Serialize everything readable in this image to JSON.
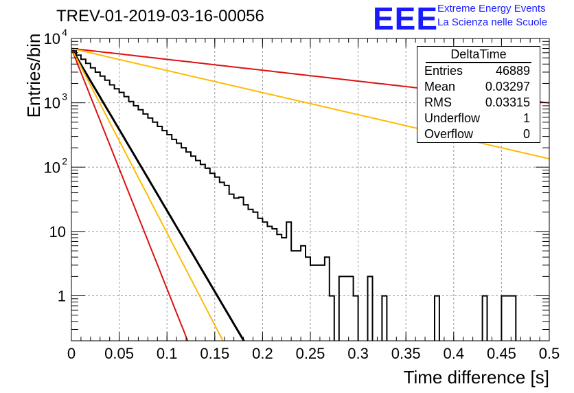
{
  "title": "TREV-01-2019-03-16-00056",
  "logo": {
    "text": "EEE",
    "line1": "Extreme Energy Events",
    "line2": "La Scienza nelle Scuole",
    "color": "#1a1aff"
  },
  "stats_box": {
    "title": "DeltaTime",
    "rows": [
      {
        "label": "Entries",
        "value": "46889"
      },
      {
        "label": "Mean",
        "value": "0.03297"
      },
      {
        "label": "RMS",
        "value": "0.03315"
      },
      {
        "label": "Underflow",
        "value": "1"
      },
      {
        "label": "Overflow",
        "value": "0"
      }
    ]
  },
  "chart_data": {
    "type": "line",
    "xlabel": "Time difference [s]",
    "ylabel": "Entries/bin",
    "xlim": [
      0,
      0.5
    ],
    "ylim": [
      0.2,
      10000
    ],
    "yscale": "log",
    "grid": true,
    "x_ticks": [
      "0",
      "0.05",
      "0.1",
      "0.15",
      "0.2",
      "0.25",
      "0.3",
      "0.35",
      "0.4",
      "0.45",
      "0.5"
    ],
    "y_ticks": [
      {
        "value": 1,
        "label": "1"
      },
      {
        "value": 10,
        "label": "10"
      },
      {
        "value": 100,
        "label": "10",
        "exp": "2"
      },
      {
        "value": 1000,
        "label": "10",
        "exp": "3"
      },
      {
        "value": 10000,
        "label": "10",
        "exp": "4"
      }
    ],
    "histogram": {
      "name": "DeltaTime",
      "color": "#000000",
      "bin_width": 0.005,
      "bin_starts": [
        0.0,
        0.005,
        0.01,
        0.015,
        0.02,
        0.025,
        0.03,
        0.035,
        0.04,
        0.045,
        0.05,
        0.055,
        0.06,
        0.065,
        0.07,
        0.075,
        0.08,
        0.085,
        0.09,
        0.095,
        0.1,
        0.105,
        0.11,
        0.115,
        0.12,
        0.125,
        0.13,
        0.135,
        0.14,
        0.145,
        0.15,
        0.155,
        0.16,
        0.165,
        0.17,
        0.175,
        0.18,
        0.185,
        0.19,
        0.195,
        0.2,
        0.205,
        0.21,
        0.215,
        0.22,
        0.225,
        0.23,
        0.235,
        0.24,
        0.245,
        0.25,
        0.255,
        0.26,
        0.265,
        0.27,
        0.275,
        0.28,
        0.285,
        0.29,
        0.295,
        0.3,
        0.305,
        0.31,
        0.315,
        0.32,
        0.325,
        0.33,
        0.335,
        0.34,
        0.345,
        0.35,
        0.355,
        0.36,
        0.365,
        0.37,
        0.375,
        0.38,
        0.385,
        0.39,
        0.395,
        0.4,
        0.405,
        0.41,
        0.415,
        0.42,
        0.425,
        0.43,
        0.435,
        0.44,
        0.445,
        0.45,
        0.455,
        0.46,
        0.465,
        0.47,
        0.475,
        0.48,
        0.485,
        0.49,
        0.495
      ],
      "counts": [
        6400,
        5500,
        4750,
        4100,
        3500,
        3000,
        2600,
        2250,
        1900,
        1650,
        1450,
        1250,
        1050,
        900,
        780,
        670,
        580,
        500,
        430,
        370,
        320,
        270,
        235,
        200,
        172,
        148,
        127,
        110,
        96,
        80,
        70,
        58,
        52,
        38,
        33,
        34,
        26,
        22,
        20,
        16,
        14,
        12,
        11,
        9,
        8,
        14,
        5,
        5,
        6,
        4,
        3,
        3,
        3,
        4,
        1,
        0,
        2,
        2,
        2,
        1,
        0,
        0,
        2,
        0,
        0,
        1,
        0,
        0,
        0,
        0,
        0,
        0,
        0,
        0,
        0,
        0,
        1,
        0,
        0,
        0,
        0,
        0,
        0,
        0,
        0,
        0,
        1,
        0,
        0,
        0,
        1,
        1,
        1,
        0,
        0,
        0,
        0,
        0,
        0,
        0
      ]
    },
    "curves": [
      {
        "color": "#000000",
        "y0": 7000,
        "slope": 58.0
      },
      {
        "color": "#dd1111",
        "y0": 7000,
        "slope": 3.9
      },
      {
        "color": "#ffbb00",
        "y0": 7000,
        "slope": 7.9
      },
      {
        "color": "#dd1111",
        "y0": 7000,
        "slope": 86.0
      },
      {
        "color": "#ffbb00",
        "y0": 7000,
        "slope": 66.0
      }
    ]
  }
}
